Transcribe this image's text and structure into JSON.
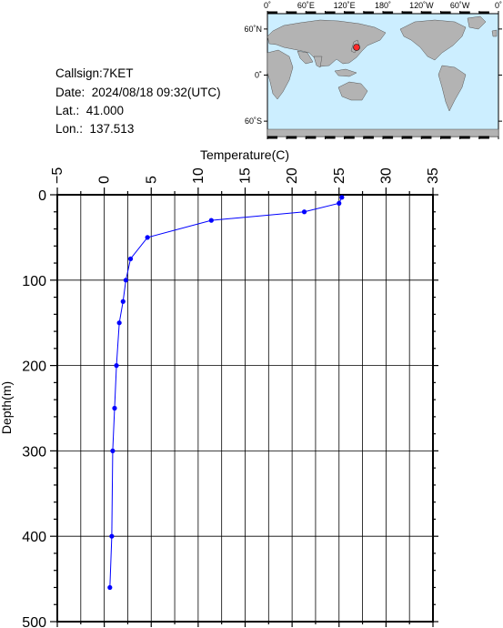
{
  "info": {
    "callsign_line": "Callsign:7KET",
    "date_line": "Date:  2024/08/18 09:32(UTC)",
    "lat_line": "Lat.:  41.000",
    "lon_line": "Lon.:  137.513"
  },
  "map": {
    "lon_labels": [
      "0˚",
      "60˚E",
      "120˚E",
      "180˚",
      "120˚W",
      "60˚W",
      "0˚"
    ],
    "lat_labels": [
      "60˚N",
      "0˚",
      "60˚S"
    ],
    "ocean_color": "#cceeff",
    "land_color": "#b3b3b3",
    "marker_color": "#ff2a2a"
  },
  "chart_data": {
    "type": "line",
    "title": "",
    "xlabel": "Temperature(C)",
    "ylabel": "Depth(m)",
    "xlim": [
      -5,
      35
    ],
    "ylim": [
      0,
      500
    ],
    "y_inverted": true,
    "x_ticks": [
      "−5",
      "0",
      "5",
      "10",
      "15",
      "20",
      "25",
      "30",
      "35"
    ],
    "y_ticks": [
      "0",
      "100",
      "200",
      "300",
      "400",
      "500"
    ],
    "x_axis_position": "top",
    "grid": true,
    "series": [
      {
        "color": "#0000ff",
        "points": [
          {
            "t": 25.3,
            "d": 3
          },
          {
            "t": 25.0,
            "d": 10
          },
          {
            "t": 21.3,
            "d": 20
          },
          {
            "t": 11.4,
            "d": 30
          },
          {
            "t": 4.6,
            "d": 50
          },
          {
            "t": 2.8,
            "d": 75
          },
          {
            "t": 2.3,
            "d": 100
          },
          {
            "t": 2.0,
            "d": 125
          },
          {
            "t": 1.6,
            "d": 150
          },
          {
            "t": 1.3,
            "d": 200
          },
          {
            "t": 1.1,
            "d": 250
          },
          {
            "t": 0.9,
            "d": 300
          },
          {
            "t": 0.8,
            "d": 400
          },
          {
            "t": 0.6,
            "d": 460
          }
        ]
      }
    ]
  }
}
